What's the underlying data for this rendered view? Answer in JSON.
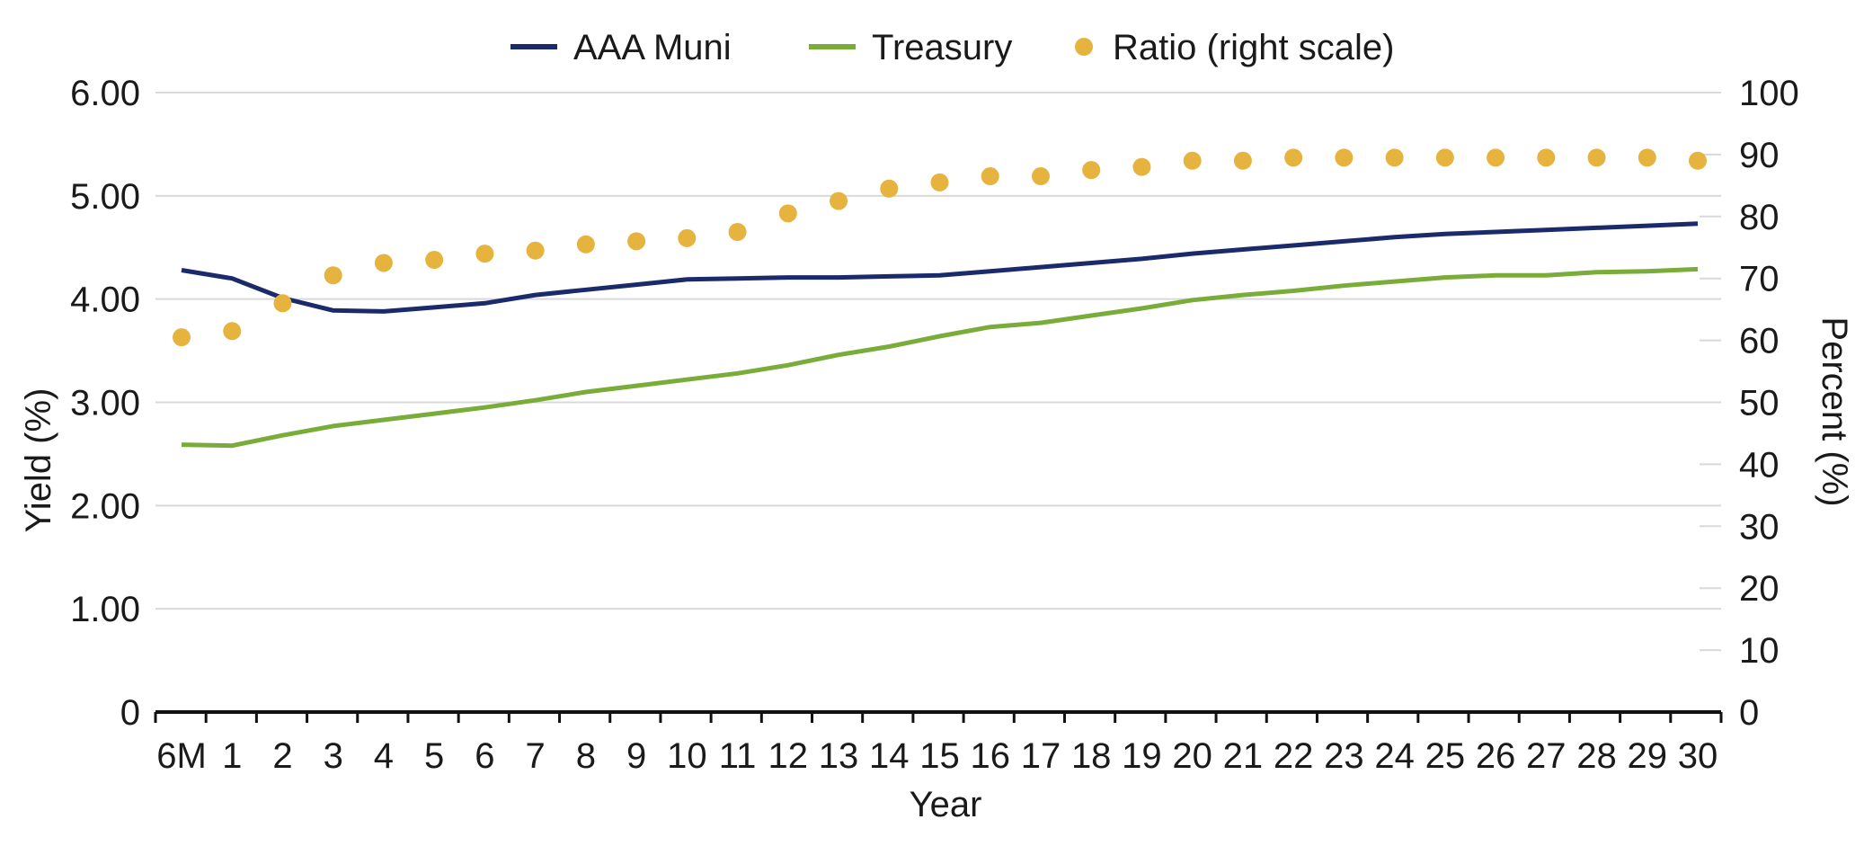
{
  "chart_data": {
    "type": "line",
    "xlabel": "Year",
    "ylabel_left": "Yield (%)",
    "ylabel_right": "Percent (%)",
    "categories": [
      "6M",
      "1",
      "2",
      "3",
      "4",
      "5",
      "6",
      "7",
      "8",
      "9",
      "10",
      "11",
      "12",
      "13",
      "14",
      "15",
      "16",
      "17",
      "18",
      "19",
      "20",
      "21",
      "22",
      "23",
      "24",
      "25",
      "26",
      "27",
      "28",
      "29",
      "30"
    ],
    "y_left": {
      "ylim": [
        0,
        6
      ],
      "ticks": [
        0,
        1,
        2,
        3,
        4,
        5,
        6
      ],
      "tick_labels": [
        "0",
        "1.00",
        "2.00",
        "3.00",
        "4.00",
        "5.00",
        "6.00"
      ]
    },
    "y_right": {
      "ylim": [
        0,
        100
      ],
      "ticks": [
        0,
        10,
        20,
        30,
        40,
        50,
        60,
        70,
        80,
        90,
        100
      ],
      "tick_labels": [
        "0",
        "10",
        "20",
        "30",
        "40",
        "50",
        "60",
        "70",
        "80",
        "90",
        "100"
      ]
    },
    "grid": true,
    "legend_position": "top-center",
    "series": [
      {
        "name": "AAA Muni",
        "kind": "line",
        "axis": "left",
        "color": "#1b2a6b",
        "values": [
          4.28,
          4.2,
          4.01,
          3.89,
          3.88,
          3.92,
          3.96,
          4.04,
          4.09,
          4.14,
          4.19,
          4.2,
          4.21,
          4.21,
          4.22,
          4.23,
          4.27,
          4.31,
          4.35,
          4.39,
          4.44,
          4.48,
          4.52,
          4.56,
          4.6,
          4.63,
          4.65,
          4.67,
          4.69,
          4.71,
          4.73
        ]
      },
      {
        "name": "Treasury",
        "kind": "line",
        "axis": "left",
        "color": "#7aac3a",
        "values": [
          2.59,
          2.58,
          2.68,
          2.77,
          2.83,
          2.89,
          2.95,
          3.02,
          3.1,
          3.16,
          3.22,
          3.28,
          3.36,
          3.46,
          3.54,
          3.64,
          3.73,
          3.77,
          3.84,
          3.91,
          3.99,
          4.04,
          4.08,
          4.13,
          4.17,
          4.21,
          4.23,
          4.23,
          4.26,
          4.27,
          4.29
        ]
      },
      {
        "name": "Ratio (right scale)",
        "kind": "scatter",
        "axis": "right",
        "color": "#e6b33e",
        "values": [
          60.5,
          61.5,
          66.0,
          70.5,
          72.5,
          73.0,
          74.0,
          74.5,
          75.5,
          76.0,
          76.5,
          77.5,
          80.5,
          82.5,
          84.5,
          85.5,
          86.5,
          86.5,
          87.5,
          88.0,
          89.0,
          89.0,
          89.5,
          89.5,
          89.5,
          89.5,
          89.5,
          89.5,
          89.5,
          89.5,
          89.0
        ]
      }
    ]
  }
}
